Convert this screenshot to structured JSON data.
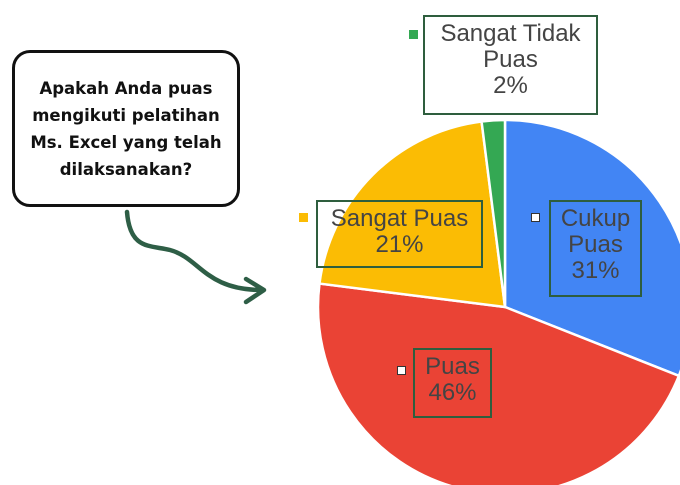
{
  "question": "Apakah Anda puas mengikuti pelatihan Ms. Excel yang telah dilaksanakan?",
  "chart_data": {
    "type": "pie",
    "categories": [
      "Cukup Puas",
      "Puas",
      "Sangat Puas",
      "Sangat Tidak Puas"
    ],
    "values": [
      31,
      46,
      21,
      2
    ],
    "value_labels": [
      "31%",
      "46%",
      "21%",
      "2%"
    ],
    "colors": [
      "#4285f4",
      "#ea4335",
      "#fbbc04",
      "#34a853"
    ]
  }
}
